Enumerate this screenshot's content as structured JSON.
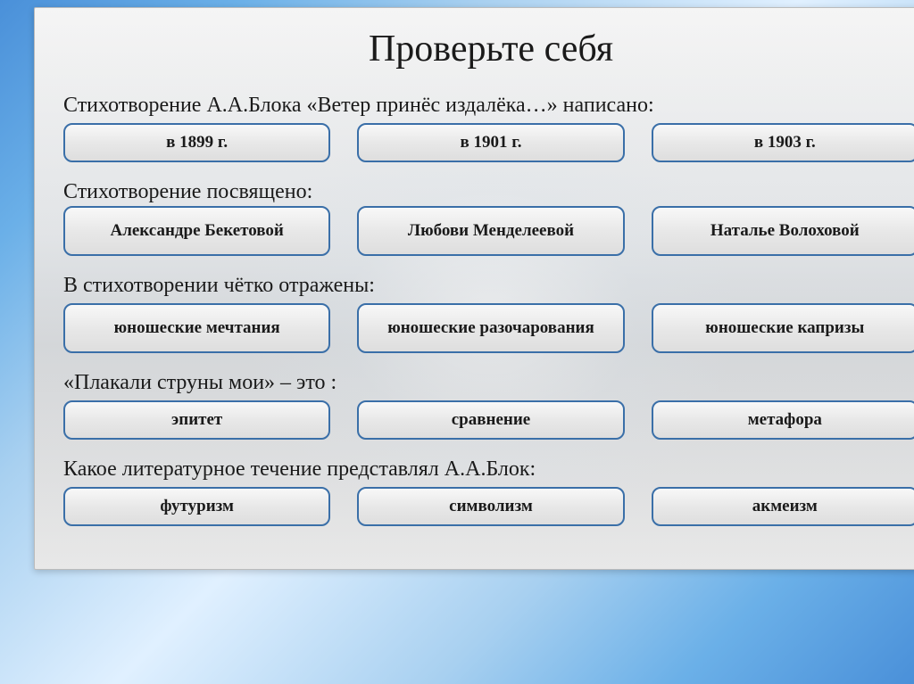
{
  "title": "Проверьте себя",
  "questions": [
    {
      "prompt": "Стихотворение А.А.Блока «Ветер принёс издалёка…» написано:",
      "options": [
        "в 1899 г.",
        "в 1901 г.",
        "в 1903 г."
      ],
      "tall": false
    },
    {
      "prompt": "Стихотворение посвящено:",
      "options": [
        "Александре Бекетовой",
        "Любови Менделеевой",
        "Наталье Волоховой"
      ],
      "tall": true
    },
    {
      "prompt": "В стихотворении чётко отражены:",
      "options": [
        "юношеские мечтания",
        "юношеские разочарования",
        "юношеские капризы"
      ],
      "tall": true
    },
    {
      "prompt": "«Плакали струны мои» – это :",
      "options": [
        "эпитет",
        "сравнение",
        "метафора"
      ],
      "tall": false
    },
    {
      "prompt": "Какое литературное течение представлял А.А.Блок:",
      "options": [
        "футуризм",
        "символизм",
        "акмеизм"
      ],
      "tall": false
    }
  ],
  "style": {
    "title_fontsize": 42,
    "question_fontsize": 24,
    "option_fontsize": 19,
    "border_color": "#3a6fa8",
    "text_color": "#1a1a1a",
    "button_bg_gradient": [
      "#f8f8f8",
      "#dedede"
    ],
    "slide_bg": "#eaeaea",
    "sky_gradient": [
      "#4a90d9",
      "#a8d0f0",
      "#e0f0ff"
    ]
  }
}
